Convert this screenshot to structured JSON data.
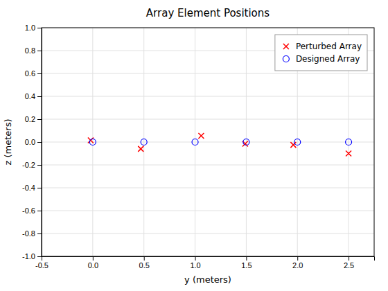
{
  "chart_data": {
    "type": "scatter",
    "title": "Array Element Positions",
    "xlabel": "y (meters)",
    "ylabel": "z (meters)",
    "xlim": [
      -0.5,
      2.75
    ],
    "ylim": [
      -1,
      1
    ],
    "xticks": [
      -0.5,
      {
        "value": 0,
        "label": "0.0"
      },
      0.5,
      {
        "value": 1,
        "label": "1.0"
      },
      1.5,
      {
        "value": 2,
        "label": "2.0"
      },
      2.5
    ],
    "yticks": [
      {
        "value": -1,
        "label": "-1.0"
      },
      -0.8,
      -0.6,
      -0.4,
      -0.2,
      {
        "value": 0,
        "label": "0.0"
      },
      0.2,
      0.4,
      0.6,
      0.8,
      {
        "value": 1,
        "label": "1.0"
      }
    ],
    "grid": true,
    "legend": "upper right",
    "series": [
      {
        "name": "Perturbed Array",
        "color": "#ff0000",
        "marker": "x",
        "x": [
          -0.02,
          0.47,
          1.06,
          1.49,
          1.96,
          2.5
        ],
        "values": [
          0.015,
          -0.06,
          0.055,
          -0.015,
          -0.025,
          -0.1
        ]
      },
      {
        "name": "Designed Array",
        "color": "#0000ff",
        "marker": "o",
        "x": [
          0.0,
          0.5,
          1.0,
          1.5,
          2.0,
          2.5
        ],
        "values": [
          0.0,
          0.0,
          0.0,
          0.0,
          0.0,
          0.0
        ]
      }
    ]
  }
}
